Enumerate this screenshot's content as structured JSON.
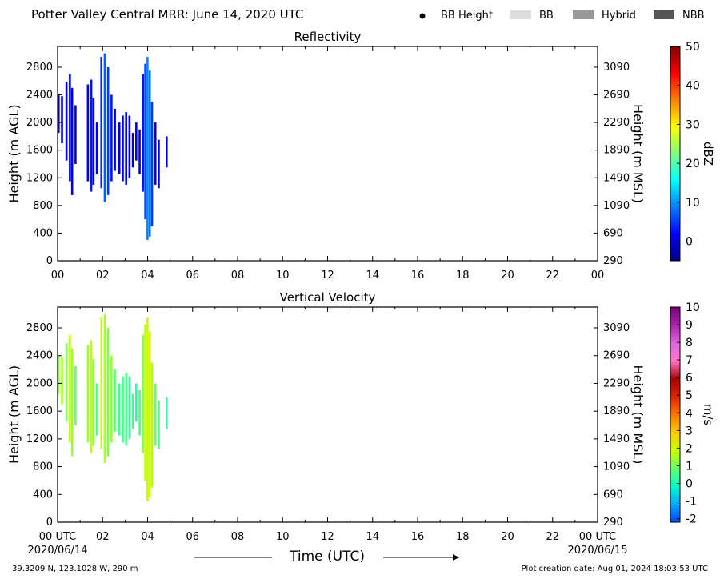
{
  "header": {
    "title": "Potter Valley Central MRR:  June 14, 2020 UTC",
    "legend": [
      {
        "label": "BB Height",
        "symbol": "dot",
        "color": "#000000"
      },
      {
        "label": "BB",
        "symbol": "box",
        "color": "#dddddd"
      },
      {
        "label": "Hybrid",
        "symbol": "box",
        "color": "#999999"
      },
      {
        "label": "NBB",
        "symbol": "box",
        "color": "#555555"
      }
    ]
  },
  "x_axis": {
    "ticks": [
      "00",
      "02",
      "04",
      "06",
      "08",
      "10",
      "12",
      "14",
      "16",
      "18",
      "20",
      "22",
      "00"
    ],
    "bottom_ticks": [
      "00 UTC",
      "02",
      "04",
      "06",
      "08",
      "10",
      "12",
      "14",
      "16",
      "18",
      "20",
      "22",
      "00 UTC"
    ],
    "start_date": "2020/06/14",
    "end_date": "2020/06/15",
    "label": "Time (UTC)"
  },
  "footer": {
    "location": "39.3209 N, 123.1028 W, 290 m",
    "creation": "Plot creation date: Aug 01, 2024 18:03:53 UTC"
  },
  "chart_data": [
    {
      "type": "heatmap",
      "title": "Reflectivity",
      "xlabel": "",
      "ylabel": "Height (m AGL)",
      "ylabel_right": "Height (m MSL)",
      "xlim": [
        0,
        24
      ],
      "ylim": [
        0,
        3100
      ],
      "yticks_left": [
        0,
        400,
        800,
        1200,
        1600,
        2000,
        2400,
        2800
      ],
      "yticks_right": [
        "290",
        "690",
        "1090",
        "1490",
        "1890",
        "2290",
        "2690",
        "3090"
      ],
      "colorbar": {
        "label": "dBZ",
        "range": [
          -5,
          50
        ],
        "ticks": [
          "0",
          "10",
          "20",
          "30",
          "40",
          "50"
        ],
        "tick_values": [
          0,
          10,
          20,
          30,
          40,
          50
        ],
        "stops": [
          "#00007f",
          "#0000ff",
          "#007fff",
          "#00ffff",
          "#7fff7f",
          "#ffff00",
          "#ff7f00",
          "#ff0000",
          "#7f0000"
        ]
      },
      "columns": [
        {
          "x": 0.0,
          "ybot": 1850,
          "ytop": 2400,
          "v": 0
        },
        {
          "x": 0.15,
          "ybot": 1700,
          "ytop": 2380,
          "v": 0
        },
        {
          "x": 0.35,
          "ybot": 1450,
          "ytop": 2580,
          "v": 1
        },
        {
          "x": 0.5,
          "ybot": 1150,
          "ytop": 2700,
          "v": 2
        },
        {
          "x": 0.6,
          "ybot": 950,
          "ytop": 2500,
          "v": 1
        },
        {
          "x": 0.75,
          "ybot": 1400,
          "ytop": 2250,
          "v": 0
        },
        {
          "x": 1.3,
          "ybot": 1150,
          "ytop": 2550,
          "v": 1
        },
        {
          "x": 1.45,
          "ybot": 1000,
          "ytop": 2620,
          "v": 3
        },
        {
          "x": 1.55,
          "ybot": 1100,
          "ytop": 2350,
          "v": 2
        },
        {
          "x": 1.7,
          "ybot": 1250,
          "ytop": 2000,
          "v": 1
        },
        {
          "x": 1.9,
          "ybot": 1050,
          "ytop": 2950,
          "v": 4
        },
        {
          "x": 2.05,
          "ybot": 850,
          "ytop": 3000,
          "v": 7
        },
        {
          "x": 2.2,
          "ybot": 950,
          "ytop": 2800,
          "v": 5
        },
        {
          "x": 2.35,
          "ybot": 1150,
          "ytop": 2400,
          "v": 3
        },
        {
          "x": 2.5,
          "ybot": 1300,
          "ytop": 2200,
          "v": 1
        },
        {
          "x": 2.7,
          "ybot": 1250,
          "ytop": 2000,
          "v": 0
        },
        {
          "x": 2.85,
          "ybot": 1150,
          "ytop": 2100,
          "v": 1
        },
        {
          "x": 3.0,
          "ybot": 1100,
          "ytop": 2150,
          "v": 1
        },
        {
          "x": 3.15,
          "ybot": 1200,
          "ytop": 2100,
          "v": 0
        },
        {
          "x": 3.3,
          "ybot": 1350,
          "ytop": 1850,
          "v": 0
        },
        {
          "x": 3.45,
          "ybot": 1450,
          "ytop": 2000,
          "v": 1
        },
        {
          "x": 3.6,
          "ybot": 1250,
          "ytop": 1900,
          "v": 1
        },
        {
          "x": 3.75,
          "ybot": 1000,
          "ytop": 2700,
          "v": 3
        },
        {
          "x": 3.85,
          "ybot": 600,
          "ytop": 2850,
          "v": 6
        },
        {
          "x": 3.95,
          "ybot": 300,
          "ytop": 2950,
          "v": 9
        },
        {
          "x": 4.05,
          "ybot": 350,
          "ytop": 2750,
          "v": 8
        },
        {
          "x": 4.15,
          "ybot": 500,
          "ytop": 2300,
          "v": 5
        },
        {
          "x": 4.3,
          "ybot": 1100,
          "ytop": 2000,
          "v": 2
        },
        {
          "x": 4.45,
          "ybot": 1050,
          "ytop": 1750,
          "v": 1
        },
        {
          "x": 4.8,
          "ybot": 1350,
          "ytop": 1800,
          "v": 1
        }
      ]
    },
    {
      "type": "heatmap",
      "title": "Vertical Velocity",
      "xlabel": "Time (UTC)",
      "ylabel": "Height (m AGL)",
      "ylabel_right": "Height (m MSL)",
      "xlim": [
        0,
        24
      ],
      "ylim": [
        0,
        3100
      ],
      "yticks_left": [
        0,
        400,
        800,
        1200,
        1600,
        2000,
        2400,
        2800
      ],
      "yticks_right": [
        "290",
        "690",
        "1090",
        "1490",
        "1890",
        "2290",
        "2690",
        "3090"
      ],
      "colorbar": {
        "label": "m/s",
        "range": [
          -2.2,
          10
        ],
        "ticks": [
          "-2",
          "-1",
          "0",
          "1",
          "2",
          "3",
          "4",
          "5",
          "6",
          "7",
          "8",
          "9",
          "10"
        ],
        "tick_values": [
          -2,
          -1,
          0,
          1,
          2,
          3,
          4,
          5,
          6,
          7,
          8,
          9,
          10
        ],
        "stops": [
          "#0044ff",
          "#00aaff",
          "#00ffcc",
          "#66ff66",
          "#ccff00",
          "#ffcc00",
          "#ff7700",
          "#dd2200",
          "#aa0000",
          "#ff77cc",
          "#dd66dd",
          "#aa22aa",
          "#770077"
        ]
      },
      "columns": [
        {
          "x": 0.0,
          "ybot": 1850,
          "ytop": 2400,
          "v": 1.2
        },
        {
          "x": 0.15,
          "ybot": 1700,
          "ytop": 2380,
          "v": 1.5
        },
        {
          "x": 0.35,
          "ybot": 1450,
          "ytop": 2580,
          "v": 1.0
        },
        {
          "x": 0.5,
          "ybot": 1150,
          "ytop": 2700,
          "v": 1.8
        },
        {
          "x": 0.6,
          "ybot": 950,
          "ytop": 2500,
          "v": 1.3
        },
        {
          "x": 0.75,
          "ybot": 1400,
          "ytop": 2250,
          "v": 0.8
        },
        {
          "x": 1.3,
          "ybot": 1150,
          "ytop": 2550,
          "v": 1.4
        },
        {
          "x": 1.45,
          "ybot": 1000,
          "ytop": 2620,
          "v": 1.7
        },
        {
          "x": 1.55,
          "ybot": 1100,
          "ytop": 2350,
          "v": 1.2
        },
        {
          "x": 1.7,
          "ybot": 1250,
          "ytop": 2000,
          "v": 0.6
        },
        {
          "x": 1.9,
          "ybot": 1050,
          "ytop": 2950,
          "v": 1.9
        },
        {
          "x": 2.05,
          "ybot": 850,
          "ytop": 3000,
          "v": 1.5
        },
        {
          "x": 2.2,
          "ybot": 950,
          "ytop": 2800,
          "v": 1.1
        },
        {
          "x": 2.35,
          "ybot": 1150,
          "ytop": 2400,
          "v": 1.3
        },
        {
          "x": 2.5,
          "ybot": 1300,
          "ytop": 2200,
          "v": 0.7
        },
        {
          "x": 2.7,
          "ybot": 1250,
          "ytop": 2000,
          "v": 0.5
        },
        {
          "x": 2.85,
          "ybot": 1150,
          "ytop": 2100,
          "v": 0.4
        },
        {
          "x": 3.0,
          "ybot": 1100,
          "ytop": 2150,
          "v": 0.6
        },
        {
          "x": 3.15,
          "ybot": 1200,
          "ytop": 2100,
          "v": 0.3
        },
        {
          "x": 3.3,
          "ybot": 1350,
          "ytop": 1850,
          "v": 0.4
        },
        {
          "x": 3.45,
          "ybot": 1450,
          "ytop": 2000,
          "v": 0.2
        },
        {
          "x": 3.6,
          "ybot": 1250,
          "ytop": 1900,
          "v": 0.5
        },
        {
          "x": 3.75,
          "ybot": 1000,
          "ytop": 2700,
          "v": 1.2
        },
        {
          "x": 3.85,
          "ybot": 600,
          "ytop": 2850,
          "v": 1.7
        },
        {
          "x": 3.95,
          "ybot": 300,
          "ytop": 2950,
          "v": 2.0
        },
        {
          "x": 4.05,
          "ybot": 350,
          "ytop": 2750,
          "v": 1.8
        },
        {
          "x": 4.15,
          "ybot": 500,
          "ytop": 2300,
          "v": 1.6
        },
        {
          "x": 4.3,
          "ybot": 1100,
          "ytop": 2000,
          "v": 0.9
        },
        {
          "x": 4.45,
          "ybot": 1050,
          "ytop": 1750,
          "v": 0.5
        },
        {
          "x": 4.8,
          "ybot": 1350,
          "ytop": 1800,
          "v": 0.2
        }
      ]
    }
  ]
}
